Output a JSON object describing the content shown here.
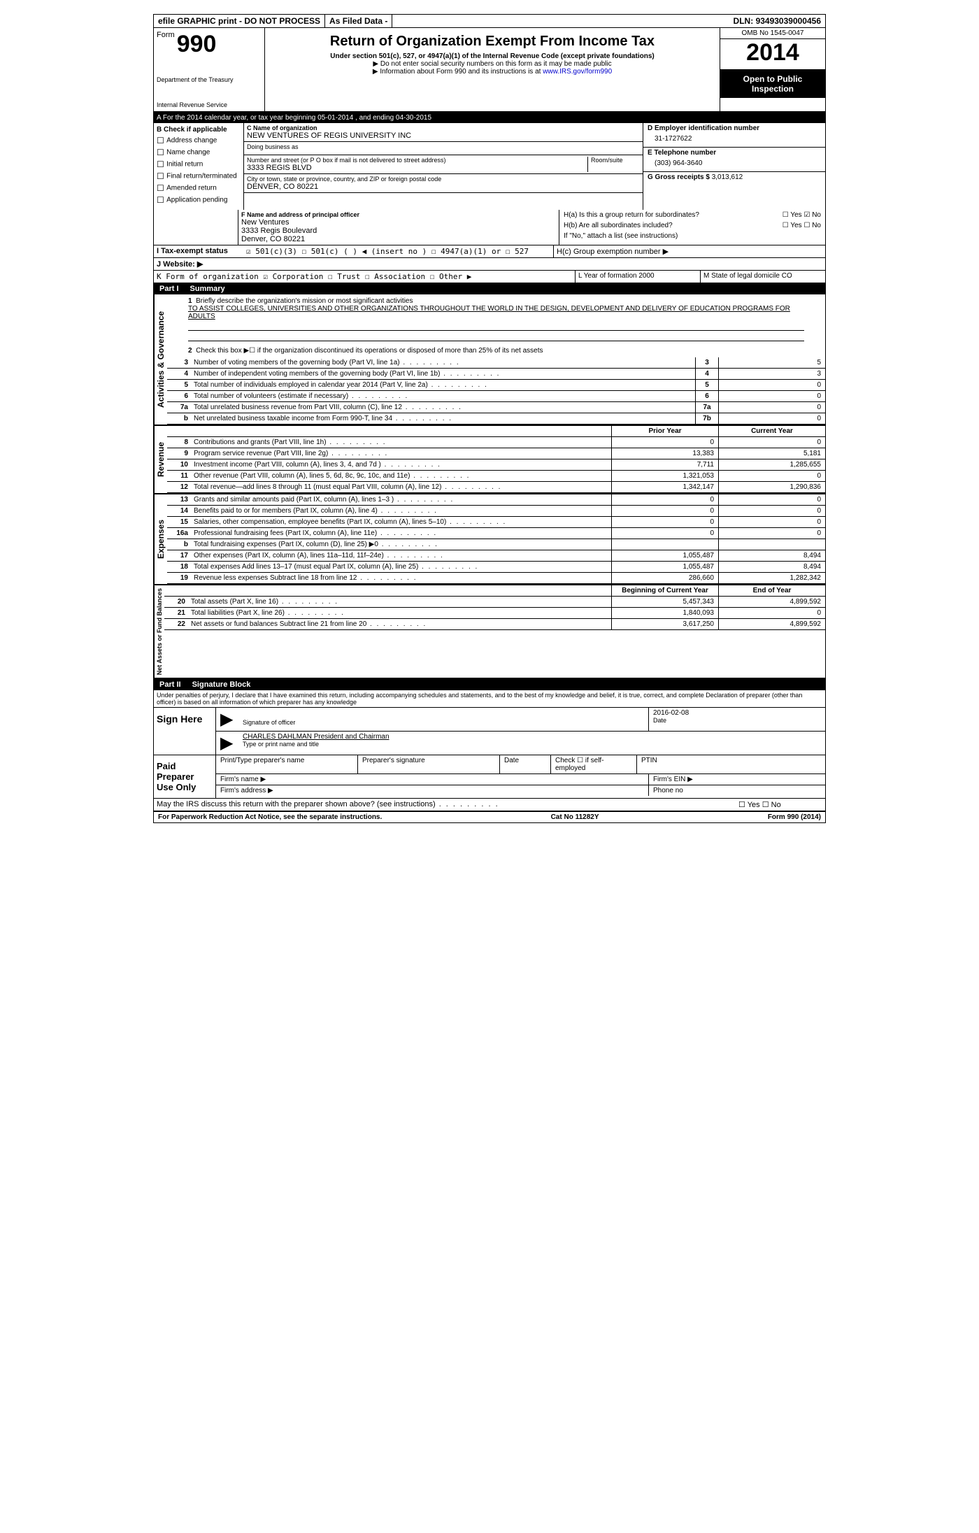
{
  "topbar": {
    "efile": "efile GRAPHIC print - DO NOT PROCESS",
    "asfiled": "As Filed Data -",
    "dln_label": "DLN:",
    "dln": "93493039000456"
  },
  "header": {
    "form_word": "Form",
    "form_num": "990",
    "dept1": "Department of the Treasury",
    "dept2": "Internal Revenue Service",
    "title": "Return of Organization Exempt From Income Tax",
    "subtitle": "Under section 501(c), 527, or 4947(a)(1) of the Internal Revenue Code (except private foundations)",
    "note1": "▶ Do not enter social security numbers on this form as it may be made public",
    "note2_pre": "▶ Information about Form 990 and its instructions is at ",
    "note2_link": "www.IRS.gov/form990",
    "omb": "OMB No 1545-0047",
    "year": "2014",
    "inspect": "Open to Public Inspection"
  },
  "lineA": "A  For the 2014 calendar year, or tax year beginning 05-01-2014    , and ending 04-30-2015",
  "colB": {
    "title": "B  Check if applicable",
    "items": [
      "Address change",
      "Name change",
      "Initial return",
      "Final return/terminated",
      "Amended return",
      "Application pending"
    ]
  },
  "mid": {
    "c_label": "C Name of organization",
    "org": "NEW VENTURES OF REGIS UNIVERSITY INC",
    "dba_label": "Doing business as",
    "addr_label": "Number and street (or P O  box if mail is not delivered to street address)",
    "room_label": "Room/suite",
    "addr": "3333 REGIS BLVD",
    "city_label": "City or town, state or province, country, and ZIP or foreign postal code",
    "city": "DENVER, CO  80221",
    "f_label": "F  Name and address of principal officer",
    "f1": "New Ventures",
    "f2": "3333 Regis Boulevard",
    "f3": "Denver, CO  80221"
  },
  "right": {
    "d_label": "D Employer identification number",
    "ein": "31-1727622",
    "e_label": "E Telephone number",
    "phone": "(303) 964-3640",
    "g_label": "G Gross receipts $",
    "gross": "3,013,612",
    "ha": "H(a)  Is this a group return for subordinates?",
    "hb": "H(b)  Are all subordinates included?",
    "hnote": "If \"No,\" attach a list  (see instructions)",
    "hc": "H(c)  Group exemption number ▶",
    "yes": "Yes",
    "no": "No"
  },
  "lineI": "I   Tax-exempt status",
  "lineI_opts": "☑ 501(c)(3)    ☐ 501(c) (  ) ◀ (insert no )    ☐ 4947(a)(1) or  ☐ 527",
  "lineJ": "J  Website: ▶",
  "lineK": "K Form of organization  ☑ Corporation ☐ Trust ☐ Association ☐ Other ▶",
  "lineL": "L Year of formation  2000",
  "lineM": "M State of legal domicile  CO",
  "partI": {
    "num": "Part I",
    "title": "Summary"
  },
  "gov": {
    "side": "Activities & Governance",
    "l1a": "Briefly describe the organization's mission or most significant activities",
    "l1b": "TO ASSIST COLLEGES, UNIVERSITIES AND OTHER ORGANIZATIONS THROUGHOUT THE WORLD IN THE DESIGN, DEVELOPMENT AND DELIVERY OF EDUCATION PROGRAMS FOR ADULTS",
    "l2": "Check this box ▶☐ if the organization discontinued its operations or disposed of more than 25% of its net assets",
    "rows": [
      {
        "n": "3",
        "d": "Number of voting members of the governing body (Part VI, line 1a)",
        "c": "3",
        "v": "5"
      },
      {
        "n": "4",
        "d": "Number of independent voting members of the governing body (Part VI, line 1b)",
        "c": "4",
        "v": "3"
      },
      {
        "n": "5",
        "d": "Total number of individuals employed in calendar year 2014 (Part V, line 2a)",
        "c": "5",
        "v": "0"
      },
      {
        "n": "6",
        "d": "Total number of volunteers (estimate if necessary)",
        "c": "6",
        "v": "0"
      },
      {
        "n": "7a",
        "d": "Total unrelated business revenue from Part VIII, column (C), line 12",
        "c": "7a",
        "v": "0"
      },
      {
        "n": "b",
        "d": "Net unrelated business taxable income from Form 990-T, line 34",
        "c": "7b",
        "v": "0"
      }
    ]
  },
  "twocol_header": {
    "prior": "Prior Year",
    "current": "Current Year"
  },
  "rev": {
    "side": "Revenue",
    "rows": [
      {
        "n": "8",
        "d": "Contributions and grants (Part VIII, line 1h)",
        "p": "0",
        "c": "0"
      },
      {
        "n": "9",
        "d": "Program service revenue (Part VIII, line 2g)",
        "p": "13,383",
        "c": "5,181"
      },
      {
        "n": "10",
        "d": "Investment income (Part VIII, column (A), lines 3, 4, and 7d )",
        "p": "7,711",
        "c": "1,285,655"
      },
      {
        "n": "11",
        "d": "Other revenue (Part VIII, column (A), lines 5, 6d, 8c, 9c, 10c, and 11e)",
        "p": "1,321,053",
        "c": "0"
      },
      {
        "n": "12",
        "d": "Total revenue—add lines 8 through 11 (must equal Part VIII, column (A), line 12)",
        "p": "1,342,147",
        "c": "1,290,836"
      }
    ]
  },
  "exp": {
    "side": "Expenses",
    "rows": [
      {
        "n": "13",
        "d": "Grants and similar amounts paid (Part IX, column (A), lines 1–3 )",
        "p": "0",
        "c": "0"
      },
      {
        "n": "14",
        "d": "Benefits paid to or for members (Part IX, column (A), line 4)",
        "p": "0",
        "c": "0"
      },
      {
        "n": "15",
        "d": "Salaries, other compensation, employee benefits (Part IX, column (A), lines 5–10)",
        "p": "0",
        "c": "0"
      },
      {
        "n": "16a",
        "d": "Professional fundraising fees (Part IX, column (A), line 11e)",
        "p": "0",
        "c": "0"
      },
      {
        "n": "b",
        "d": "Total fundraising expenses (Part IX, column (D), line 25) ▶0",
        "p": "",
        "c": ""
      },
      {
        "n": "17",
        "d": "Other expenses (Part IX, column (A), lines 11a–11d, 11f–24e)",
        "p": "1,055,487",
        "c": "8,494"
      },
      {
        "n": "18",
        "d": "Total expenses  Add lines 13–17 (must equal Part IX, column (A), line 25)",
        "p": "1,055,487",
        "c": "8,494"
      },
      {
        "n": "19",
        "d": "Revenue less expenses  Subtract line 18 from line 12",
        "p": "286,660",
        "c": "1,282,342"
      }
    ]
  },
  "net": {
    "side": "Net Assets or Fund Balances",
    "h1": "Beginning of Current Year",
    "h2": "End of Year",
    "rows": [
      {
        "n": "20",
        "d": "Total assets (Part X, line 16)",
        "p": "5,457,343",
        "c": "4,899,592"
      },
      {
        "n": "21",
        "d": "Total liabilities (Part X, line 26)",
        "p": "1,840,093",
        "c": "0"
      },
      {
        "n": "22",
        "d": "Net assets or fund balances  Subtract line 21 from line 20",
        "p": "3,617,250",
        "c": "4,899,592"
      }
    ]
  },
  "partII": {
    "num": "Part II",
    "title": "Signature Block"
  },
  "perjury": "Under penalties of perjury, I declare that I have examined this return, including accompanying schedules and statements, and to the best of my knowledge and belief, it is true, correct, and complete  Declaration of preparer (other than officer) is based on all information of which preparer has any knowledge",
  "sign": {
    "here": "Sign Here",
    "sig_officer": "Signature of officer",
    "date_label": "Date",
    "date": "2016-02-08",
    "name": "CHARLES DAHLMAN President and Chairman",
    "name_label": "Type or print name and title"
  },
  "paid": {
    "label": "Paid Preparer Use Only",
    "h1": "Print/Type preparer's name",
    "h2": "Preparer's signature",
    "h3": "Date",
    "h4": "Check ☐ if self-employed",
    "h5": "PTIN",
    "firm": "Firm's name   ▶",
    "firm_ein": "Firm's EIN ▶",
    "firm_addr": "Firm's address ▶",
    "phone": "Phone no"
  },
  "discuss": "May the IRS discuss this return with the preparer shown above? (see instructions)",
  "footer": {
    "left": "For Paperwork Reduction Act Notice, see the separate instructions.",
    "mid": "Cat No  11282Y",
    "right": "Form 990 (2014)"
  }
}
